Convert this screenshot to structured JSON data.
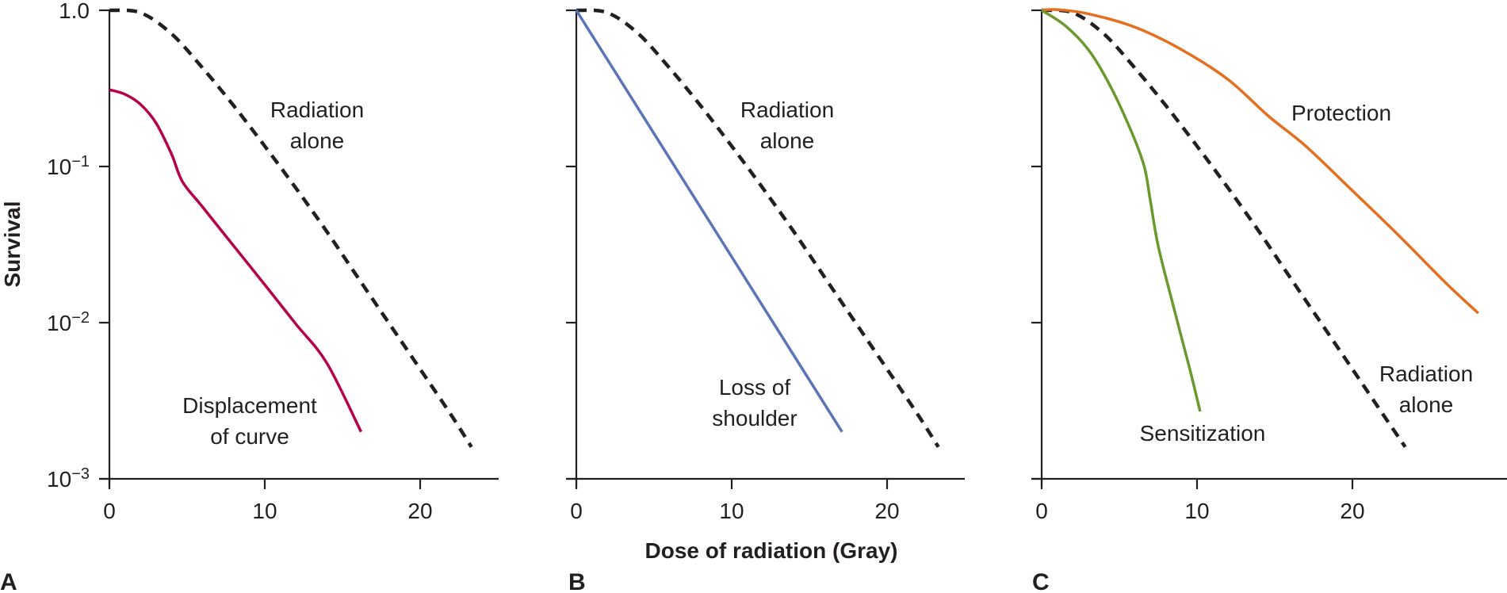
{
  "chart_data": {
    "type": "line",
    "y_scale": "log",
    "ylabel": "Survival",
    "xlabel": "Dose of radiation (Gray)",
    "ylim": [
      0.001,
      1.0
    ],
    "y_ticks": [
      1.0,
      0.1,
      0.01,
      0.001
    ],
    "y_tick_labels": [
      {
        "base": "1.0",
        "exp": ""
      },
      {
        "base": "10",
        "exp": "−1"
      },
      {
        "base": "10",
        "exp": "−2"
      },
      {
        "base": "10",
        "exp": "−3"
      }
    ],
    "x_ticks": [
      0,
      10,
      20
    ],
    "x_tick_labels": [
      "0",
      "10",
      "20"
    ],
    "grid": false,
    "panels": [
      {
        "letter": "A",
        "xlim": [
          0,
          25
        ],
        "show_y_tick_labels": true,
        "annotations": [
          {
            "lines": [
              "Radiation",
              "alone"
            ],
            "series": "Radiation alone"
          },
          {
            "lines": [
              "Displacement",
              "of curve"
            ],
            "series": "Displacement of curve"
          }
        ],
        "series": [
          {
            "name": "Radiation alone",
            "style": "dashed",
            "color": "#231f20",
            "x": [
              0,
              2,
              4,
              6,
              8,
              10,
              12,
              14,
              16,
              18,
              20,
              22,
              23.3
            ],
            "y": [
              1.0,
              0.965,
              0.707,
              0.427,
              0.245,
              0.135,
              0.0728,
              0.0382,
              0.0194,
              0.0099,
              0.00504,
              0.00256,
              0.0016
            ]
          },
          {
            "name": "Displacement of curve",
            "style": "solid",
            "color": "#b5004a",
            "x": [
              0,
              1,
              2,
              3,
              4,
              4.7,
              6,
              8,
              10,
              12,
              14,
              16.2
            ],
            "y": [
              0.31,
              0.29,
              0.25,
              0.19,
              0.12,
              0.08,
              0.055,
              0.031,
              0.0175,
              0.0098,
              0.0055,
              0.002
            ]
          }
        ]
      },
      {
        "letter": "B",
        "xlim": [
          0,
          25
        ],
        "show_y_tick_labels": false,
        "annotations": [
          {
            "lines": [
              "Radiation",
              "alone"
            ],
            "series": "Radiation alone"
          },
          {
            "lines": [
              "Loss of",
              "shoulder"
            ],
            "series": "Loss of shoulder"
          }
        ],
        "series": [
          {
            "name": "Radiation alone",
            "style": "dashed",
            "color": "#231f20",
            "x": [
              0,
              2,
              4,
              6,
              8,
              10,
              12,
              14,
              16,
              18,
              20,
              22,
              23.3
            ],
            "y": [
              1.0,
              0.965,
              0.707,
              0.427,
              0.245,
              0.135,
              0.0728,
              0.0382,
              0.0194,
              0.0099,
              0.00504,
              0.00256,
              0.0016
            ]
          },
          {
            "name": "Loss of shoulder",
            "style": "solid",
            "color": "#5b73b9",
            "x": [
              0,
              17.1
            ],
            "y": [
              1.0,
              0.002
            ]
          }
        ]
      },
      {
        "letter": "C",
        "xlim": [
          0,
          30
        ],
        "show_y_tick_labels": false,
        "annotations": [
          {
            "lines": [
              "Protection"
            ],
            "series": "Protection"
          },
          {
            "lines": [
              "Radiation",
              "alone"
            ],
            "series": "Radiation alone"
          },
          {
            "lines": [
              "Sensitization"
            ],
            "series": "Sensitization"
          }
        ],
        "series": [
          {
            "name": "Radiation alone",
            "style": "dashed",
            "color": "#231f20",
            "x": [
              0,
              2,
              4,
              6,
              8,
              10,
              12,
              14,
              16,
              18,
              20,
              22,
              23.4
            ],
            "y": [
              1.0,
              0.965,
              0.707,
              0.427,
              0.245,
              0.135,
              0.0728,
              0.0382,
              0.0194,
              0.0099,
              0.00504,
              0.00256,
              0.0016
            ]
          },
          {
            "name": "Protection",
            "style": "solid",
            "color": "#e46f1f",
            "x": [
              0,
              1,
              3,
              6,
              9,
              12,
              14.6,
              17,
              20,
              23,
              26,
              28.1
            ],
            "y": [
              1.0,
              1.01,
              0.95,
              0.78,
              0.56,
              0.36,
              0.21,
              0.135,
              0.07,
              0.036,
              0.018,
              0.0115
            ]
          },
          {
            "name": "Sensitization",
            "style": "solid",
            "color": "#6a9a2e",
            "x": [
              0,
              1.5,
              3,
              4.4,
              5.8,
              6.6,
              7.0,
              7.5,
              8.5,
              9.5,
              10.2
            ],
            "y": [
              1.0,
              0.8,
              0.56,
              0.33,
              0.165,
              0.1,
              0.06,
              0.031,
              0.0125,
              0.0052,
              0.0027
            ]
          }
        ]
      }
    ]
  }
}
